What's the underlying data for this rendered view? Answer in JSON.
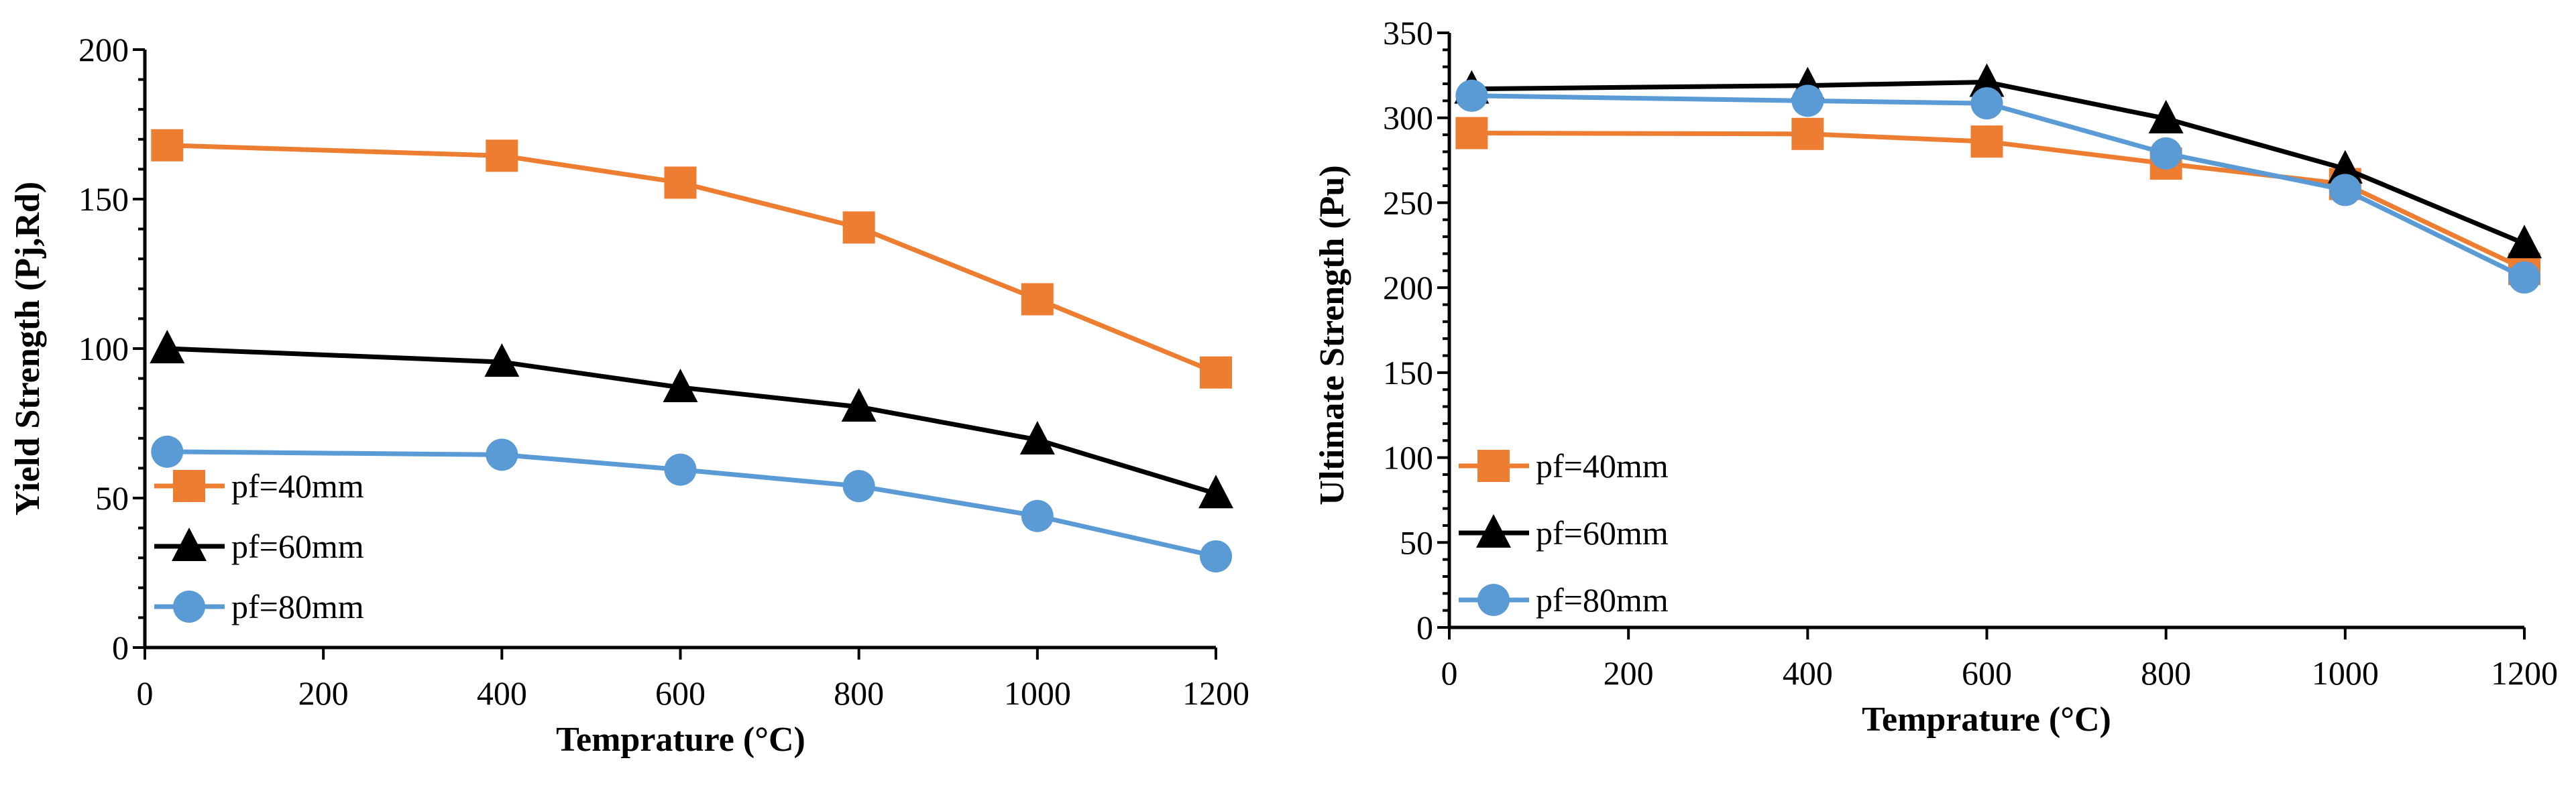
{
  "chart_data": [
    {
      "type": "line",
      "title": "",
      "xlabel": "Temprature (°C)",
      "ylabel": "Yield Strength (Pj,Rd)",
      "xlim": [
        0,
        1200
      ],
      "ylim": [
        0,
        200
      ],
      "xticks": [
        0,
        200,
        400,
        600,
        800,
        1000,
        1200
      ],
      "yticks": [
        0,
        50,
        100,
        150,
        200
      ],
      "x": [
        25,
        400,
        600,
        800,
        1000,
        1200
      ],
      "legend_position": "bottom-left",
      "grid": false,
      "series": [
        {
          "name": "pf=40mm",
          "color": "#ED7D31",
          "marker": "square",
          "values": [
            168,
            164.5,
            155.5,
            140.5,
            116.5,
            92
          ]
        },
        {
          "name": "pf=60mm",
          "color": "#000000",
          "marker": "triangle",
          "values": [
            100,
            95.5,
            87,
            80.5,
            69.5,
            51.5
          ]
        },
        {
          "name": "pf=80mm",
          "color": "#5B9BD5",
          "marker": "circle",
          "values": [
            65.5,
            64.5,
            59.5,
            54,
            44,
            30.5
          ]
        }
      ]
    },
    {
      "type": "line",
      "title": "",
      "xlabel": "Temprature (°C)",
      "ylabel": "Ultimate Strength (Pu)",
      "xlim": [
        0,
        1200
      ],
      "ylim": [
        0,
        350
      ],
      "xticks": [
        0,
        200,
        400,
        600,
        800,
        1000,
        1200
      ],
      "yticks": [
        0,
        50,
        100,
        150,
        200,
        250,
        300,
        350
      ],
      "x": [
        25,
        400,
        600,
        800,
        1000,
        1200
      ],
      "legend_position": "bottom-left",
      "grid": false,
      "series": [
        {
          "name": "pf=40mm",
          "color": "#ED7D31",
          "marker": "square",
          "values": [
            291,
            290.5,
            286,
            273,
            261,
            211
          ]
        },
        {
          "name": "pf=60mm",
          "color": "#000000",
          "marker": "triangle",
          "values": [
            317,
            319,
            321,
            299.5,
            270,
            226
          ]
        },
        {
          "name": "pf=80mm",
          "color": "#5B9BD5",
          "marker": "circle",
          "values": [
            313,
            310,
            308.5,
            279,
            257.5,
            206
          ]
        }
      ]
    }
  ]
}
